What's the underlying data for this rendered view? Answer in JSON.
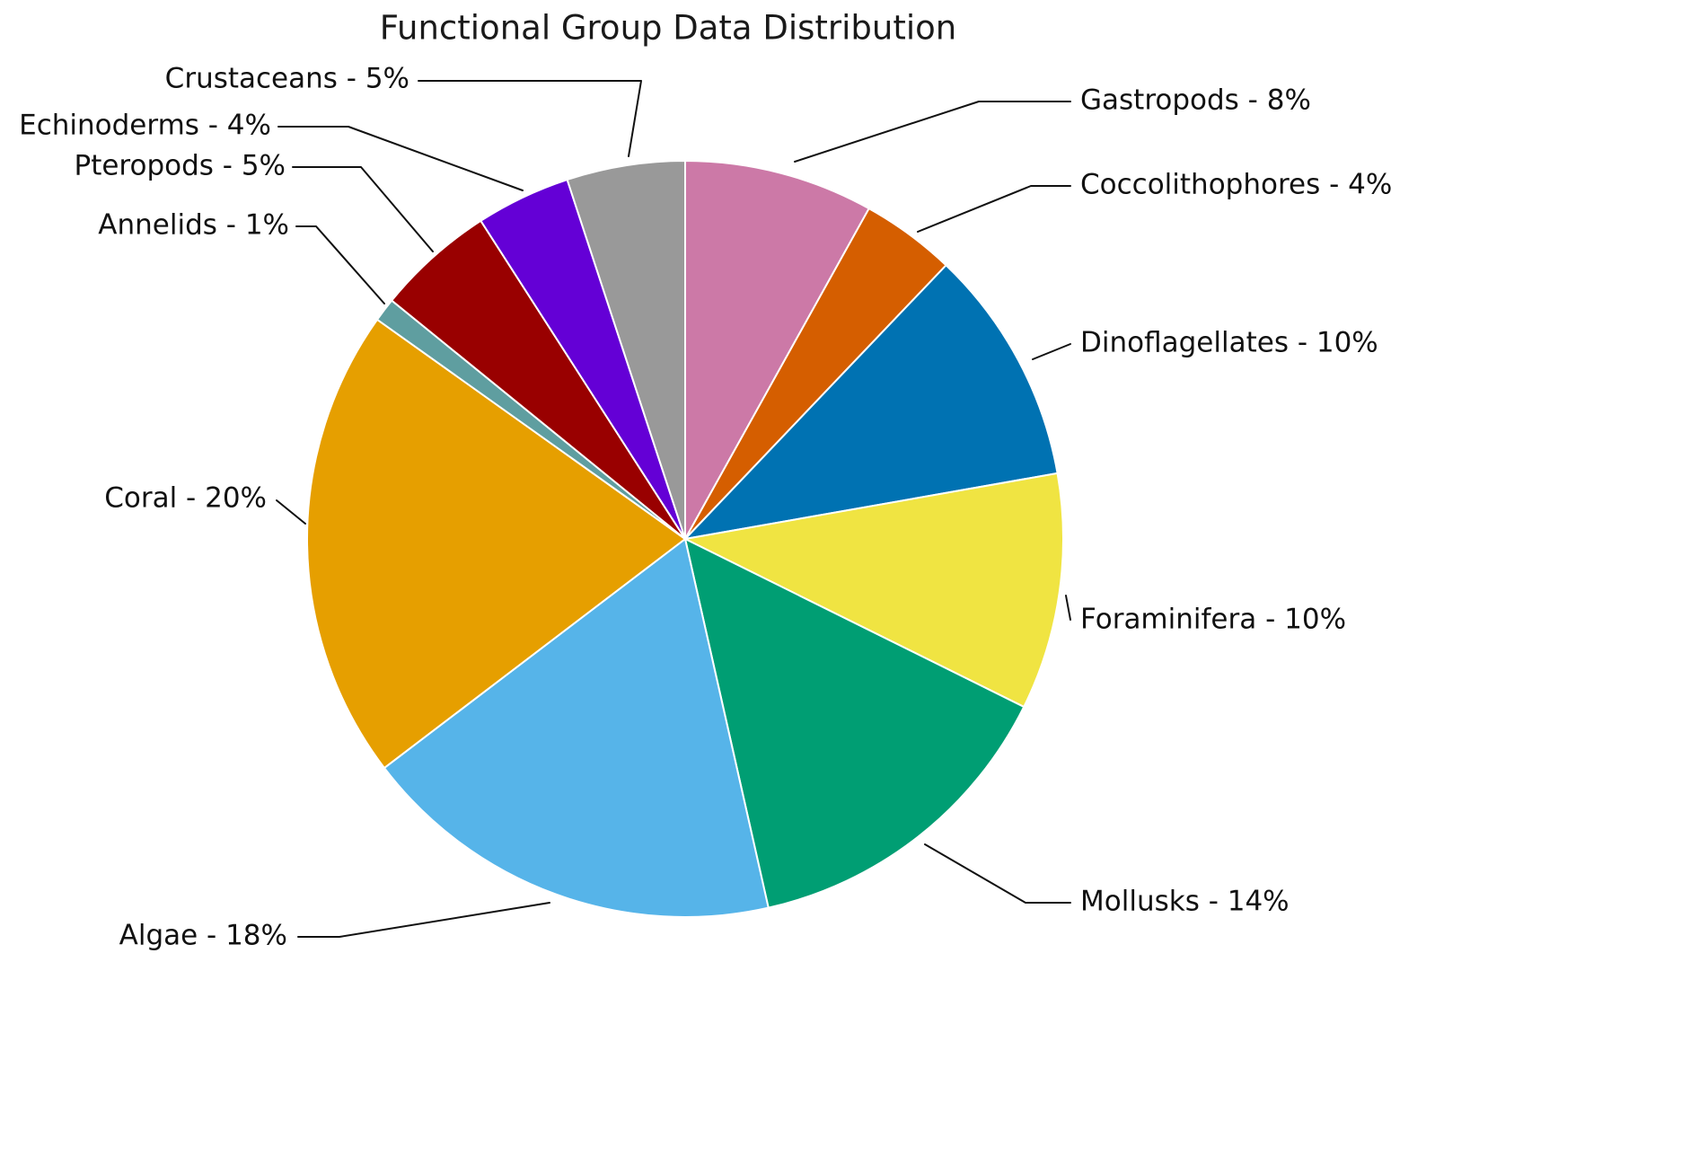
{
  "title": "Functional Group Data Distribution",
  "chart_data": {
    "type": "pie",
    "title": "Functional Group Data Distribution",
    "start_angle": "12-oclock",
    "direction": "clockwise",
    "legend": "none",
    "label_format": "{label} - {value}%",
    "slices": [
      {
        "label": "Gastropods",
        "value": 8,
        "color": "#CC79A7"
      },
      {
        "label": "Coccolithophores",
        "value": 4,
        "color": "#D55E00"
      },
      {
        "label": "Dinoflagellates",
        "value": 10,
        "color": "#0072B2"
      },
      {
        "label": "Foraminifera",
        "value": 10,
        "color": "#F0E442"
      },
      {
        "label": "Mollusks",
        "value": 14,
        "color": "#009E73"
      },
      {
        "label": "Algae",
        "value": 18,
        "color": "#56B4E9"
      },
      {
        "label": "Coral",
        "value": 20,
        "color": "#E69F00"
      },
      {
        "label": "Annelids",
        "value": 1,
        "color": "#5F9EA0"
      },
      {
        "label": "Pteropods",
        "value": 5,
        "color": "#990000"
      },
      {
        "label": "Echinoderms",
        "value": 4,
        "color": "#6400D6"
      },
      {
        "label": "Crustaceans",
        "value": 5,
        "color": "#999999"
      }
    ]
  }
}
